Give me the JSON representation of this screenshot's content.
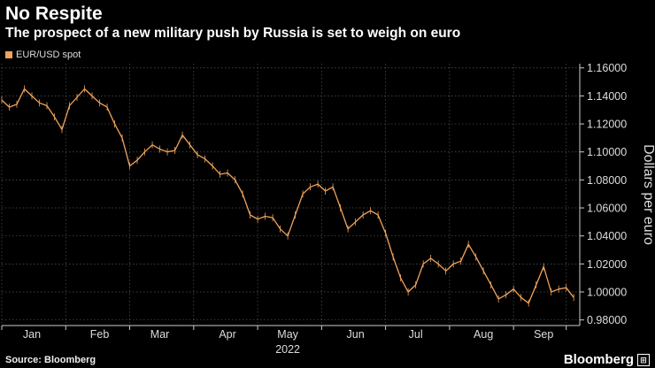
{
  "header": {
    "title": "No Respite",
    "subtitle": "The prospect of a new military push by Russia is set to weigh on euro"
  },
  "legend": {
    "label": "EUR/USD spot",
    "color": "#f0a35c"
  },
  "footer": {
    "source": "Source: Bloomberg",
    "brand": "Bloomberg"
  },
  "colors": {
    "series": "#f0a35c",
    "grid": "#555555",
    "axis": "#cccccc"
  },
  "chart_data": {
    "type": "line",
    "title": "No Respite",
    "subtitle": "The prospect of a new military push by Russia is set to weigh on euro",
    "xlabel": "2022",
    "ylabel": "Dollars per euro",
    "ylim": [
      0.976,
      1.163
    ],
    "yticks": [
      1.16,
      1.14,
      1.12,
      1.1,
      1.08,
      1.06,
      1.04,
      1.02,
      1.0,
      0.98
    ],
    "ytick_labels": [
      "1.16000",
      "1.14000",
      "1.12000",
      "1.10000",
      "1.08000",
      "1.06000",
      "1.04000",
      "1.02000",
      "1.00000",
      "0.98000"
    ],
    "xlim": [
      0,
      38.4
    ],
    "xticks": [
      2,
      6.5,
      10.5,
      15,
      19,
      23.5,
      27.5,
      32,
      36
    ],
    "xtick_labels": [
      "Jan",
      "Feb",
      "Mar",
      "Apr",
      "May",
      "Jun",
      "Jul",
      "Aug",
      "Sep"
    ],
    "legend": [
      "EUR/USD spot"
    ],
    "series": [
      {
        "name": "EUR/USD spot",
        "x": [
          0,
          0.5,
          1,
          1.5,
          2,
          2.5,
          3,
          3.5,
          4,
          4.5,
          5,
          5.5,
          6,
          6.5,
          7,
          7.5,
          8,
          8.5,
          9,
          9.5,
          10,
          10.5,
          11,
          11.5,
          12,
          12.5,
          13,
          13.5,
          14,
          14.5,
          15,
          15.5,
          16,
          16.5,
          17,
          17.5,
          18,
          18.5,
          19,
          19.5,
          20,
          20.5,
          21,
          21.5,
          22,
          22.5,
          23,
          23.5,
          24,
          24.5,
          25,
          25.5,
          26,
          26.5,
          27,
          27.5,
          28,
          28.5,
          29,
          29.5,
          30,
          30.5,
          31,
          31.5,
          32,
          32.5,
          33,
          33.5,
          34,
          34.5,
          35,
          35.5,
          36,
          36.5,
          37,
          37.5,
          38
        ],
        "values": [
          1.137,
          1.132,
          1.134,
          1.145,
          1.14,
          1.135,
          1.133,
          1.125,
          1.116,
          1.133,
          1.139,
          1.145,
          1.14,
          1.135,
          1.132,
          1.12,
          1.11,
          1.09,
          1.094,
          1.1,
          1.105,
          1.102,
          1.1,
          1.101,
          1.112,
          1.105,
          1.098,
          1.095,
          1.09,
          1.084,
          1.085,
          1.08,
          1.07,
          1.055,
          1.052,
          1.054,
          1.053,
          1.045,
          1.04,
          1.055,
          1.07,
          1.075,
          1.077,
          1.072,
          1.075,
          1.06,
          1.045,
          1.05,
          1.055,
          1.058,
          1.055,
          1.042,
          1.025,
          1.01,
          1.0,
          1.005,
          1.02,
          1.024,
          1.02,
          1.015,
          1.02,
          1.022,
          1.034,
          1.025,
          1.015,
          1.005,
          0.995,
          0.998,
          1.002,
          0.996,
          0.992,
          1.005,
          1.018,
          1.0,
          1.002,
          1.003,
          0.996
        ]
      }
    ]
  }
}
